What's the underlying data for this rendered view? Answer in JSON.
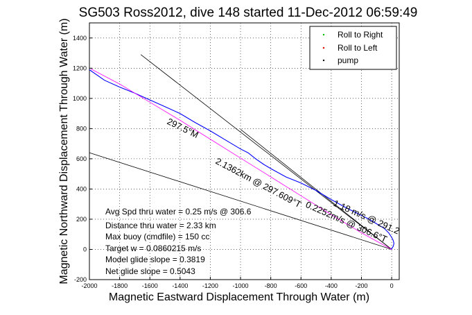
{
  "chart_data": {
    "type": "line",
    "title": "SG503 Ross2012, dive 148 started 11-Dec-2012 06:59:49",
    "xlabel": "Magnetic Eastward Displacement Through Water (m)",
    "ylabel": "Magnetic Northward Displacement Through Water (m)",
    "xlim": [
      -2000,
      50
    ],
    "ylim": [
      -200,
      1500
    ],
    "xticks": [
      -2000,
      -1800,
      -1600,
      -1400,
      -1200,
      -1000,
      -800,
      -600,
      -400,
      -200,
      0
    ],
    "yticks": [
      -200,
      0,
      200,
      400,
      600,
      800,
      1000,
      1200,
      1400
    ],
    "grid": true,
    "legend_position": "top-right",
    "legend": [
      {
        "label": "Roll to Right",
        "color": "#00bb00",
        "marker": "dot"
      },
      {
        "label": "Roll to Left",
        "color": "#dd0000",
        "marker": "dot"
      },
      {
        "label": "pump",
        "color": "#000000",
        "marker": "dot"
      }
    ],
    "series": [
      {
        "color": "#0000ff",
        "x": [
          -2000,
          -1900,
          -1800,
          -1700,
          -1600,
          -1500,
          -1400,
          -1300,
          -1200,
          -1100,
          -1000,
          -950,
          -900,
          -850,
          -800,
          -700,
          -600,
          -500,
          -400,
          -300,
          -200,
          -150,
          -100,
          -50,
          -20,
          0,
          10,
          15,
          10,
          0,
          -10
        ],
        "y": [
          1190,
          1120,
          1075,
          1035,
          990,
          945,
          900,
          840,
          785,
          725,
          665,
          640,
          600,
          565,
          535,
          480,
          440,
          390,
          330,
          275,
          225,
          200,
          170,
          140,
          110,
          80,
          60,
          40,
          20,
          5,
          0
        ]
      },
      {
        "color": "#ff00ff",
        "x": [
          -1990,
          -1800,
          -1600,
          -1400,
          -1200,
          -1000,
          -800,
          -600,
          -400,
          -200,
          -100,
          0
        ],
        "y": [
          1195,
          1095,
          975,
          855,
          730,
          605,
          480,
          355,
          230,
          110,
          55,
          0
        ]
      }
    ],
    "lines": [
      {
        "name": "ref-line-steep",
        "color": "#000000",
        "x": [
          -1660,
          0
        ],
        "y": [
          1290,
          0
        ]
      },
      {
        "name": "ref-line-mid",
        "color": "#000000",
        "x": [
          -1000,
          0
        ],
        "y": [
          795,
          0
        ]
      },
      {
        "name": "ref-line-low",
        "color": "#000000",
        "x": [
          -2000,
          0
        ],
        "y": [
          640,
          0
        ]
      }
    ],
    "annotations": [
      "Avg Spd thru water =  0.25 m/s @ 306.6",
      "Distance thru water =  2.33 km",
      "Max buoy (cmdfile) = 150 cc",
      "Target w = 0.0860215 m/s",
      "Model glide slope = 0.3819",
      "Net glide slope = 0.5043"
    ],
    "rotated_labels": [
      "297.5°M",
      "2.1362km @ 297.609°T",
      "0.2252m/s @ 306.6°T",
      "1.18 m/s @ 291.2"
    ]
  }
}
